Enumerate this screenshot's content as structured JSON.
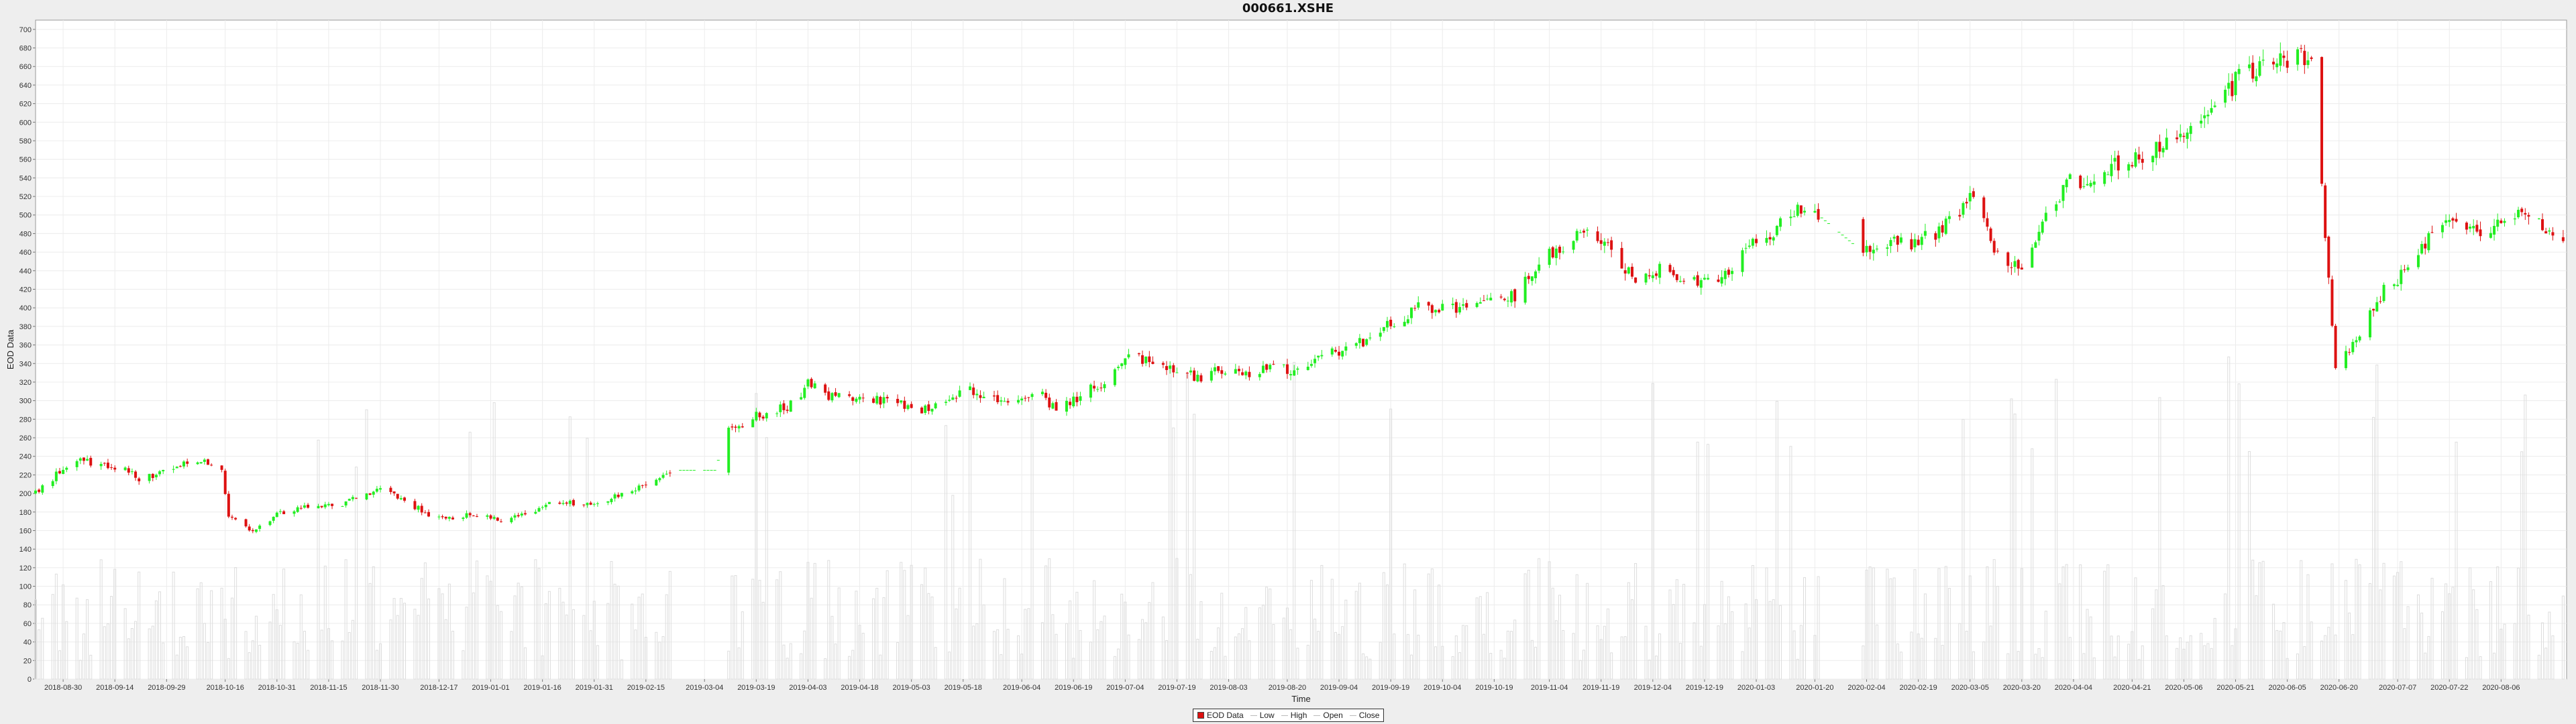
{
  "chart_data": {
    "type": "candlestick",
    "title": "000661.XSHE",
    "xlabel": "Time",
    "ylabel": "EOD Data",
    "ylim": [
      0,
      710
    ],
    "yticks": [
      0,
      20,
      40,
      60,
      80,
      100,
      120,
      140,
      160,
      180,
      200,
      220,
      240,
      260,
      280,
      300,
      320,
      340,
      360,
      380,
      400,
      420,
      440,
      460,
      480,
      500,
      520,
      540,
      560,
      580,
      600,
      620,
      640,
      660,
      680,
      700
    ],
    "xticks": [
      "2018-08-30",
      "2018-09-14",
      "2018-09-29",
      "2018-10-16",
      "2018-10-31",
      "2018-11-15",
      "2018-11-30",
      "2018-12-17",
      "2019-01-01",
      "2019-01-16",
      "2019-01-31",
      "2019-02-15",
      "2019-03-04",
      "2019-03-19",
      "2019-04-03",
      "2019-04-18",
      "2019-05-03",
      "2019-05-18",
      "2019-06-04",
      "2019-06-19",
      "2019-07-04",
      "2019-07-19",
      "2019-08-03",
      "2019-08-20",
      "2019-09-04",
      "2019-09-19",
      "2019-10-04",
      "2019-10-19",
      "2019-11-04",
      "2019-11-19",
      "2019-12-04",
      "2019-12-19",
      "2020-01-03",
      "2020-01-20",
      "2020-02-04",
      "2020-02-19",
      "2020-03-05",
      "2020-03-20",
      "2020-04-04",
      "2020-04-21",
      "2020-05-06",
      "2020-05-21",
      "2020-06-05",
      "2020-06-20",
      "2020-07-07",
      "2020-07-22",
      "2020-08-06"
    ],
    "price_keypoints": [
      [
        "2018-08-22",
        200
      ],
      [
        "2018-08-28",
        220
      ],
      [
        "2018-09-03",
        238
      ],
      [
        "2018-09-10",
        230
      ],
      [
        "2018-09-17",
        228
      ],
      [
        "2018-09-21",
        215
      ],
      [
        "2018-09-28",
        222
      ],
      [
        "2018-10-08",
        236
      ],
      [
        "2018-10-15",
        228
      ],
      [
        "2018-10-17",
        175
      ],
      [
        "2018-10-24",
        160
      ],
      [
        "2018-10-31",
        178
      ],
      [
        "2018-11-09",
        186
      ],
      [
        "2018-11-20",
        190
      ],
      [
        "2018-11-30",
        206
      ],
      [
        "2018-12-07",
        192
      ],
      [
        "2018-12-14",
        178
      ],
      [
        "2018-12-20",
        172
      ],
      [
        "2018-12-27",
        178
      ],
      [
        "2019-01-04",
        170
      ],
      [
        "2019-01-11",
        178
      ],
      [
        "2019-01-18",
        188
      ],
      [
        "2019-01-25",
        190
      ],
      [
        "2019-02-01",
        188
      ],
      [
        "2019-02-11",
        205
      ],
      [
        "2019-02-18",
        215
      ],
      [
        "2019-02-22",
        225
      ],
      [
        "2019-03-07",
        225
      ],
      [
        "2019-03-11",
        268
      ],
      [
        "2019-03-18",
        282
      ],
      [
        "2019-03-29",
        295
      ],
      [
        "2019-04-03",
        318
      ],
      [
        "2019-04-09",
        305
      ],
      [
        "2019-04-16",
        302
      ],
      [
        "2019-04-25",
        300
      ],
      [
        "2019-05-06",
        290
      ],
      [
        "2019-05-13",
        300
      ],
      [
        "2019-05-20",
        312
      ],
      [
        "2019-05-27",
        302
      ],
      [
        "2019-06-03",
        300
      ],
      [
        "2019-06-10",
        305
      ],
      [
        "2019-06-14",
        288
      ],
      [
        "2019-06-21",
        305
      ],
      [
        "2019-06-28",
        322
      ],
      [
        "2019-07-05",
        348
      ],
      [
        "2019-07-12",
        340
      ],
      [
        "2019-07-19",
        330
      ],
      [
        "2019-07-26",
        325
      ],
      [
        "2019-08-02",
        335
      ],
      [
        "2019-08-09",
        328
      ],
      [
        "2019-08-16",
        340
      ],
      [
        "2019-08-23",
        330
      ],
      [
        "2019-08-30",
        352
      ],
      [
        "2019-09-06",
        355
      ],
      [
        "2019-09-13",
        368
      ],
      [
        "2019-09-20",
        385
      ],
      [
        "2019-09-27",
        400
      ],
      [
        "2019-10-11",
        398
      ],
      [
        "2019-10-18",
        405
      ],
      [
        "2019-10-25",
        412
      ],
      [
        "2019-11-01",
        450
      ],
      [
        "2019-11-08",
        468
      ],
      [
        "2019-11-15",
        480
      ],
      [
        "2019-11-22",
        465
      ],
      [
        "2019-11-29",
        425
      ],
      [
        "2019-12-06",
        440
      ],
      [
        "2019-12-13",
        435
      ],
      [
        "2019-12-20",
        428
      ],
      [
        "2019-12-27",
        445
      ],
      [
        "2020-01-03",
        470
      ],
      [
        "2020-01-10",
        490
      ],
      [
        "2020-01-17",
        510
      ],
      [
        "2020-01-21",
        500
      ],
      [
        "2020-02-03",
        460
      ],
      [
        "2020-02-10",
        470
      ],
      [
        "2020-02-17",
        468
      ],
      [
        "2020-02-24",
        480
      ],
      [
        "2020-03-02",
        500
      ],
      [
        "2020-03-06",
        520
      ],
      [
        "2020-03-13",
        455
      ],
      [
        "2020-03-20",
        440
      ],
      [
        "2020-03-27",
        500
      ],
      [
        "2020-04-03",
        535
      ],
      [
        "2020-04-10",
        540
      ],
      [
        "2020-04-17",
        555
      ],
      [
        "2020-04-24",
        560
      ],
      [
        "2020-05-01",
        580
      ],
      [
        "2020-05-08",
        600
      ],
      [
        "2020-05-15",
        610
      ],
      [
        "2020-05-22",
        650
      ],
      [
        "2020-05-29",
        660
      ],
      [
        "2020-06-05",
        665
      ],
      [
        "2020-06-12",
        672
      ],
      [
        "2020-06-19",
        340
      ],
      [
        "2020-06-26",
        370
      ],
      [
        "2020-07-03",
        420
      ],
      [
        "2020-07-10",
        440
      ],
      [
        "2020-07-17",
        480
      ],
      [
        "2020-07-24",
        495
      ],
      [
        "2020-07-31",
        480
      ],
      [
        "2020-08-07",
        500
      ],
      [
        "2020-08-14",
        505
      ],
      [
        "2020-08-21",
        480
      ],
      [
        "2020-08-24",
        470
      ]
    ],
    "gaps": [
      [
        "2019-02-25",
        "2019-03-08"
      ],
      [
        "2020-01-22",
        "2020-02-02"
      ]
    ],
    "legend": [
      "EOD Data",
      "Low",
      "High",
      "Open",
      "Close"
    ],
    "legend_position": "bottom-center",
    "grid": true,
    "colors": {
      "up": "#22ee22",
      "down": "#dd1111",
      "volume": "#dddddd",
      "axis": "#555555"
    }
  }
}
